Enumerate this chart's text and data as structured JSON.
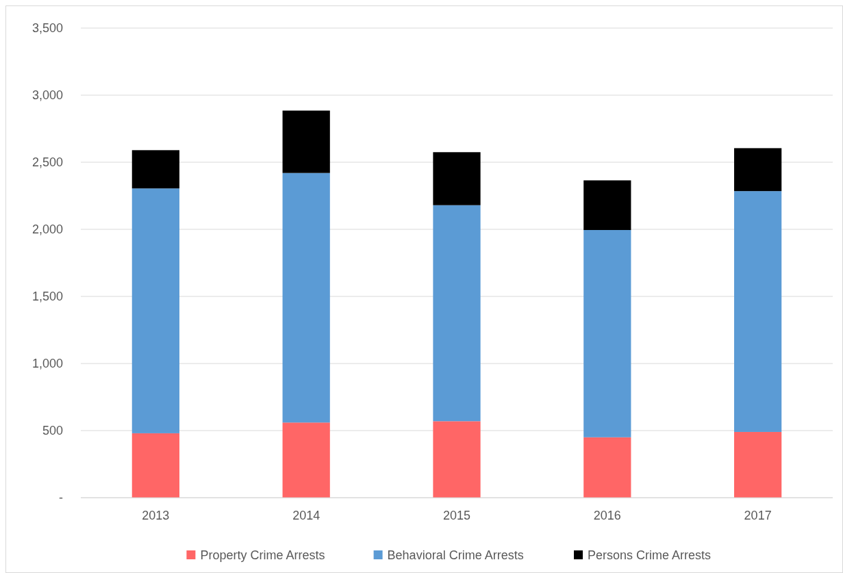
{
  "chart_data": {
    "type": "bar",
    "stacked": true,
    "categories": [
      "2013",
      "2014",
      "2015",
      "2016",
      "2017"
    ],
    "series": [
      {
        "name": "Property Crime Arrests",
        "color": "#ff6666",
        "values": [
          480,
          560,
          570,
          450,
          490
        ]
      },
      {
        "name": "Behavioral Crime Arrests",
        "color": "#5b9bd5",
        "values": [
          1825,
          1860,
          1610,
          1545,
          1795
        ]
      },
      {
        "name": "Persons Crime Arrests",
        "color": "#000000",
        "values": [
          285,
          465,
          395,
          370,
          320
        ]
      }
    ],
    "ylim": [
      0,
      3500
    ],
    "yticks": [
      {
        "value": 0,
        "label": "-"
      },
      {
        "value": 500,
        "label": "500"
      },
      {
        "value": 1000,
        "label": "1,000"
      },
      {
        "value": 1500,
        "label": "1,500"
      },
      {
        "value": 2000,
        "label": "2,000"
      },
      {
        "value": 2500,
        "label": "2,500"
      },
      {
        "value": 3000,
        "label": "3,000"
      },
      {
        "value": 3500,
        "label": "3,500"
      }
    ],
    "grid": "y",
    "legend": "bottom"
  }
}
